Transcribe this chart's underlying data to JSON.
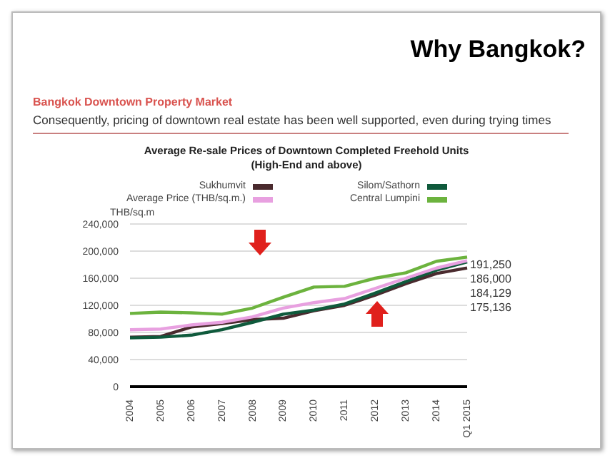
{
  "chart_data": {
    "type": "line",
    "title": "Why Bangkok?",
    "subtitle": "Bangkok Downtown Property Market",
    "annotations": [
      "Consequently, pricing of downtown real estate has been well supported, even during trying times",
      "Average Re-sale Prices of Downtown Completed Freehold Units",
      "(High-End and above)"
    ],
    "ylabel": "THB/sq.m",
    "categories": [
      "2004",
      "2005",
      "2006",
      "2007",
      "2008",
      "2009",
      "2010",
      "2011",
      "2012",
      "2013",
      "2014",
      "Q1 2015"
    ],
    "series": [
      {
        "name": "Sukhumvit",
        "color": "#4a2a2e",
        "values": [
          73000,
          74000,
          88000,
          93000,
          99000,
          101000,
          112000,
          120000,
          135000,
          152000,
          167000,
          175136
        ],
        "value_labels": [
          null,
          null,
          null,
          null,
          null,
          null,
          null,
          null,
          null,
          null,
          null,
          "175,136"
        ]
      },
      {
        "name": "Silom/Sathorn",
        "color": "#0f5a3c",
        "values": [
          72000,
          73000,
          76000,
          84000,
          95000,
          107000,
          113000,
          122000,
          138000,
          155000,
          172000,
          184129
        ],
        "value_labels": [
          null,
          null,
          null,
          null,
          null,
          null,
          null,
          null,
          null,
          null,
          null,
          "184,129"
        ]
      },
      {
        "name": "Average Price (THB/sq.m.)",
        "color": "#e8a0e0",
        "values": [
          84000,
          85000,
          91000,
          95000,
          103000,
          116000,
          124000,
          130000,
          145000,
          160000,
          175000,
          186000
        ],
        "value_labels": [
          null,
          null,
          null,
          null,
          null,
          null,
          null,
          null,
          null,
          null,
          null,
          "186,000"
        ]
      },
      {
        "name": "Central Lumpini",
        "color": "#6cb33e",
        "values": [
          108000,
          110000,
          109000,
          107000,
          116000,
          132000,
          147000,
          148000,
          160000,
          168000,
          185000,
          191250
        ],
        "value_labels": [
          null,
          null,
          null,
          null,
          null,
          null,
          null,
          null,
          null,
          null,
          null,
          "191,250"
        ]
      }
    ],
    "ylim": [
      0,
      240000
    ],
    "yticks": [
      0,
      {
        "value": 40000,
        "label": "40,000"
      },
      {
        "value": 80000,
        "label": "80,000"
      },
      {
        "value": 120000,
        "label": "120,000"
      },
      {
        "value": 160000,
        "label": "160,000"
      },
      {
        "value": 200000,
        "label": "200,000"
      },
      {
        "value": 240000,
        "label": "240,000"
      }
    ],
    "grid": "y",
    "legend": "top",
    "marker": "none",
    "line_style": "solid"
  }
}
